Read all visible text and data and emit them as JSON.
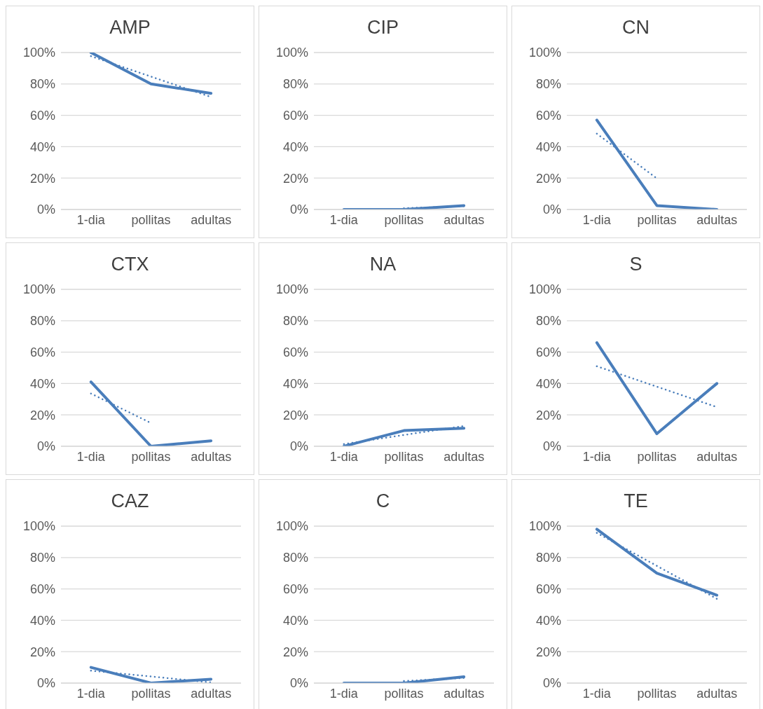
{
  "chart_data": [
    {
      "type": "line",
      "title": "AMP",
      "categories": [
        "1-dia",
        "pollitas",
        "adultas"
      ],
      "ylim": [
        0,
        100
      ],
      "yticks": [
        {
          "value": 0,
          "label": "0%"
        },
        {
          "value": 20,
          "label": "20%"
        },
        {
          "value": 40,
          "label": "40%"
        },
        {
          "value": 60,
          "label": "60%"
        },
        {
          "value": 80,
          "label": "80%"
        },
        {
          "value": 100,
          "label": "100%"
        }
      ],
      "grid": "y",
      "marker": "none",
      "series": [
        {
          "color": "#4a7ebb",
          "values": [
            100,
            80,
            74
          ],
          "line_style": "solid"
        },
        {
          "type": "line",
          "color": "#4a7ebb",
          "values": [
            97.7,
            84.7,
            71.7
          ],
          "line_style": "dotted"
        }
      ]
    },
    {
      "type": "line",
      "title": "CIP",
      "categories": [
        "1-dia",
        "pollitas",
        "adultas"
      ],
      "ylim": [
        0,
        100
      ],
      "yticks": [
        {
          "value": 0,
          "label": "0%"
        },
        {
          "value": 20,
          "label": "20%"
        },
        {
          "value": 40,
          "label": "40%"
        },
        {
          "value": 60,
          "label": "60%"
        },
        {
          "value": 80,
          "label": "80%"
        },
        {
          "value": 100,
          "label": "100%"
        }
      ],
      "grid": "y",
      "marker": "none",
      "series": [
        {
          "color": "#4a7ebb",
          "values": [
            0,
            0,
            2.5
          ],
          "line_style": "solid"
        },
        {
          "type": "line",
          "color": "#4a7ebb",
          "values": [
            null,
            0.8,
            2.1
          ],
          "line_style": "dotted"
        }
      ]
    },
    {
      "type": "line",
      "title": "CN",
      "categories": [
        "1-dia",
        "pollitas",
        "adultas"
      ],
      "ylim": [
        0,
        100
      ],
      "yticks": [
        {
          "value": 0,
          "label": "0%"
        },
        {
          "value": 20,
          "label": "20%"
        },
        {
          "value": 40,
          "label": "40%"
        },
        {
          "value": 60,
          "label": "60%"
        },
        {
          "value": 80,
          "label": "80%"
        },
        {
          "value": 100,
          "label": "100%"
        }
      ],
      "grid": "y",
      "marker": "none",
      "series": [
        {
          "color": "#4a7ebb",
          "values": [
            57,
            2.5,
            0
          ],
          "line_style": "solid"
        },
        {
          "type": "line",
          "color": "#4a7ebb",
          "values": [
            48.3,
            19.8,
            null
          ],
          "line_style": "dotted"
        }
      ]
    },
    {
      "type": "line",
      "title": "CTX",
      "categories": [
        "1-dia",
        "pollitas",
        "adultas"
      ],
      "ylim": [
        0,
        100
      ],
      "yticks": [
        {
          "value": 0,
          "label": "0%"
        },
        {
          "value": 20,
          "label": "20%"
        },
        {
          "value": 40,
          "label": "40%"
        },
        {
          "value": 60,
          "label": "60%"
        },
        {
          "value": 80,
          "label": "80%"
        },
        {
          "value": 100,
          "label": "100%"
        }
      ],
      "grid": "y",
      "marker": "none",
      "series": [
        {
          "color": "#4a7ebb",
          "values": [
            41,
            0,
            3.5
          ],
          "line_style": "solid"
        },
        {
          "type": "line",
          "color": "#4a7ebb",
          "values": [
            33.6,
            14.8,
            null
          ],
          "line_style": "dotted"
        }
      ]
    },
    {
      "type": "line",
      "title": "NA",
      "categories": [
        "1-dia",
        "pollitas",
        "adultas"
      ],
      "ylim": [
        0,
        100
      ],
      "yticks": [
        {
          "value": 0,
          "label": "0%"
        },
        {
          "value": 20,
          "label": "20%"
        },
        {
          "value": 40,
          "label": "40%"
        },
        {
          "value": 60,
          "label": "60%"
        },
        {
          "value": 80,
          "label": "80%"
        },
        {
          "value": 100,
          "label": "100%"
        }
      ],
      "grid": "y",
      "marker": "none",
      "series": [
        {
          "color": "#4a7ebb",
          "values": [
            0,
            10,
            11.5
          ],
          "line_style": "solid"
        },
        {
          "type": "line",
          "color": "#4a7ebb",
          "values": [
            1.4,
            7.2,
            12.9
          ],
          "line_style": "dotted"
        }
      ]
    },
    {
      "type": "line",
      "title": "S",
      "categories": [
        "1-dia",
        "pollitas",
        "adultas"
      ],
      "ylim": [
        0,
        100
      ],
      "yticks": [
        {
          "value": 0,
          "label": "0%"
        },
        {
          "value": 20,
          "label": "20%"
        },
        {
          "value": 40,
          "label": "40%"
        },
        {
          "value": 60,
          "label": "60%"
        },
        {
          "value": 80,
          "label": "80%"
        },
        {
          "value": 100,
          "label": "100%"
        }
      ],
      "grid": "y",
      "marker": "none",
      "series": [
        {
          "color": "#4a7ebb",
          "values": [
            66,
            8,
            40
          ],
          "line_style": "solid"
        },
        {
          "type": "line",
          "color": "#4a7ebb",
          "values": [
            51,
            38,
            25
          ],
          "line_style": "dotted"
        }
      ]
    },
    {
      "type": "line",
      "title": "CAZ",
      "categories": [
        "1-dia",
        "pollitas",
        "adultas"
      ],
      "ylim": [
        0,
        100
      ],
      "yticks": [
        {
          "value": 0,
          "label": "0%"
        },
        {
          "value": 20,
          "label": "20%"
        },
        {
          "value": 40,
          "label": "40%"
        },
        {
          "value": 60,
          "label": "60%"
        },
        {
          "value": 80,
          "label": "80%"
        },
        {
          "value": 100,
          "label": "100%"
        }
      ],
      "grid": "y",
      "marker": "none",
      "series": [
        {
          "color": "#4a7ebb",
          "values": [
            10,
            0,
            2.5
          ],
          "line_style": "solid"
        },
        {
          "type": "line",
          "color": "#4a7ebb",
          "values": [
            7.9,
            4.2,
            0.4
          ],
          "line_style": "dotted"
        }
      ]
    },
    {
      "type": "line",
      "title": "C",
      "categories": [
        "1-dia",
        "pollitas",
        "adultas"
      ],
      "ylim": [
        0,
        100
      ],
      "yticks": [
        {
          "value": 0,
          "label": "0%"
        },
        {
          "value": 20,
          "label": "20%"
        },
        {
          "value": 40,
          "label": "40%"
        },
        {
          "value": 60,
          "label": "60%"
        },
        {
          "value": 80,
          "label": "80%"
        },
        {
          "value": 100,
          "label": "100%"
        }
      ],
      "grid": "y",
      "marker": "none",
      "series": [
        {
          "color": "#4a7ebb",
          "values": [
            0,
            0,
            4
          ],
          "line_style": "solid"
        },
        {
          "type": "line",
          "color": "#4a7ebb",
          "values": [
            null,
            1.3,
            3.3
          ],
          "line_style": "dotted"
        }
      ]
    },
    {
      "type": "line",
      "title": "TE",
      "categories": [
        "1-dia",
        "pollitas",
        "adultas"
      ],
      "ylim": [
        0,
        100
      ],
      "yticks": [
        {
          "value": 0,
          "label": "0%"
        },
        {
          "value": 20,
          "label": "20%"
        },
        {
          "value": 40,
          "label": "40%"
        },
        {
          "value": 60,
          "label": "60%"
        },
        {
          "value": 80,
          "label": "80%"
        },
        {
          "value": 100,
          "label": "100%"
        }
      ],
      "grid": "y",
      "marker": "none",
      "series": [
        {
          "color": "#4a7ebb",
          "values": [
            98,
            70,
            56
          ],
          "line_style": "solid"
        },
        {
          "type": "line",
          "color": "#4a7ebb",
          "values": [
            95.7,
            74.7,
            53.7
          ],
          "line_style": "dotted"
        }
      ]
    }
  ]
}
